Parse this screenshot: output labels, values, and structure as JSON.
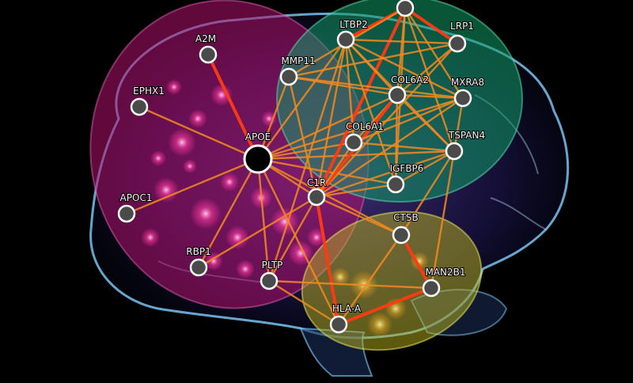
{
  "network": {
    "nodes": [
      {
        "id": "top",
        "label": ""
      },
      {
        "id": "A2M",
        "label": "A2M"
      },
      {
        "id": "EPHX1",
        "label": "EPHX1"
      },
      {
        "id": "APOE",
        "label": "APOE",
        "hub": true
      },
      {
        "id": "APOC1",
        "label": "APOC1"
      },
      {
        "id": "RBP1",
        "label": "RBP1"
      },
      {
        "id": "PLTP",
        "label": "PLTP"
      },
      {
        "id": "MMP11",
        "label": "MMP11"
      },
      {
        "id": "LTBP2",
        "label": "LTBP2"
      },
      {
        "id": "LRP1",
        "label": "LRP1"
      },
      {
        "id": "COL6A2",
        "label": "COL6A2"
      },
      {
        "id": "MXRA8",
        "label": "MXRA8"
      },
      {
        "id": "COL6A1",
        "label": "COL6A1"
      },
      {
        "id": "TSPAN4",
        "label": "TSPAN4"
      },
      {
        "id": "IGFBP6",
        "label": "IGFBP6"
      },
      {
        "id": "C1R",
        "label": "C1R"
      },
      {
        "id": "CTSB",
        "label": "CTSB"
      },
      {
        "id": "MAN2B1",
        "label": "MAN2B1"
      },
      {
        "id": "HLA-A",
        "label": "HLA-A"
      }
    ],
    "edges": [
      [
        "APOE",
        "A2M",
        "strong"
      ],
      [
        "APOE",
        "EPHX1",
        "normal"
      ],
      [
        "APOE",
        "APOC1",
        "normal"
      ],
      [
        "APOE",
        "RBP1",
        "normal"
      ],
      [
        "APOE",
        "PLTP",
        "normal"
      ],
      [
        "APOE",
        "MMP11",
        "normal"
      ],
      [
        "APOE",
        "LTBP2",
        "normal"
      ],
      [
        "APOE",
        "COL6A2",
        "normal"
      ],
      [
        "APOE",
        "COL6A1",
        "normal"
      ],
      [
        "APOE",
        "TSPAN4",
        "normal"
      ],
      [
        "APOE",
        "C1R",
        "normal"
      ],
      [
        "APOE",
        "MXRA8",
        "normal"
      ],
      [
        "APOE",
        "IGFBP6",
        "normal"
      ],
      [
        "APOE",
        "HLA-A",
        "normal"
      ],
      [
        "APOE",
        "CTSB",
        "normal"
      ],
      [
        "top",
        "LTBP2",
        "strong"
      ],
      [
        "top",
        "LRP1",
        "strong"
      ],
      [
        "top",
        "COL6A2",
        "normal"
      ],
      [
        "top",
        "MXRA8",
        "normal"
      ],
      [
        "top",
        "TSPAN4",
        "normal"
      ],
      [
        "top",
        "IGFBP6",
        "normal"
      ],
      [
        "top",
        "C1R",
        "strong"
      ],
      [
        "top",
        "MMP11",
        "normal"
      ],
      [
        "LTBP2",
        "LRP1",
        "normal"
      ],
      [
        "LTBP2",
        "COL6A2",
        "normal"
      ],
      [
        "LTBP2",
        "MXRA8",
        "normal"
      ],
      [
        "LTBP2",
        "COL6A1",
        "normal"
      ],
      [
        "LTBP2",
        "C1R",
        "normal"
      ],
      [
        "LTBP2",
        "TSPAN4",
        "normal"
      ],
      [
        "LTBP2",
        "IGFBP6",
        "normal"
      ],
      [
        "LTBP2",
        "PLTP",
        "normal"
      ],
      [
        "LRP1",
        "COL6A2",
        "normal"
      ],
      [
        "LRP1",
        "MMP11",
        "normal"
      ],
      [
        "LRP1",
        "C1R",
        "normal"
      ],
      [
        "MMP11",
        "COL6A2",
        "normal"
      ],
      [
        "MMP11",
        "MXRA8",
        "normal"
      ],
      [
        "MMP11",
        "C1R",
        "normal"
      ],
      [
        "COL6A2",
        "COL6A1",
        "normal"
      ],
      [
        "COL6A2",
        "MXRA8",
        "normal"
      ],
      [
        "COL6A2",
        "C1R",
        "strong"
      ],
      [
        "COL6A2",
        "TSPAN4",
        "normal"
      ],
      [
        "COL6A2",
        "IGFBP6",
        "normal"
      ],
      [
        "MXRA8",
        "COL6A1",
        "normal"
      ],
      [
        "MXRA8",
        "C1R",
        "normal"
      ],
      [
        "MXRA8",
        "TSPAN4",
        "normal"
      ],
      [
        "COL6A1",
        "C1R",
        "normal"
      ],
      [
        "COL6A1",
        "TSPAN4",
        "normal"
      ],
      [
        "TSPAN4",
        "IGFBP6",
        "normal"
      ],
      [
        "TSPAN4",
        "C1R",
        "normal"
      ],
      [
        "TSPAN4",
        "MAN2B1",
        "normal"
      ],
      [
        "C1R",
        "CTSB",
        "normal"
      ],
      [
        "C1R",
        "HLA-A",
        "strong"
      ],
      [
        "C1R",
        "IGFBP6",
        "normal"
      ],
      [
        "C1R",
        "RBP1",
        "normal"
      ],
      [
        "C1R",
        "PLTP",
        "normal"
      ],
      [
        "CTSB",
        "MAN2B1",
        "strong"
      ],
      [
        "CTSB",
        "HLA-A",
        "normal"
      ],
      [
        "CTSB",
        "TSPAN4",
        "normal"
      ],
      [
        "MAN2B1",
        "HLA-A",
        "strong"
      ],
      [
        "PLTP",
        "MAN2B1",
        "normal"
      ],
      [
        "PLTP",
        "HLA-A",
        "normal"
      ]
    ]
  },
  "colors": {
    "edge_normal": "#f28a1e",
    "edge_strong": "#ff3a12",
    "node_fill": "#4a4a4a",
    "node_stroke": "#ffffff",
    "hub_fill": "#000000",
    "cluster_magenta": "#b0106c",
    "cluster_green": "#119a66",
    "cluster_yellow": "#b9b420",
    "brain_edge": "#7fd0ff"
  }
}
